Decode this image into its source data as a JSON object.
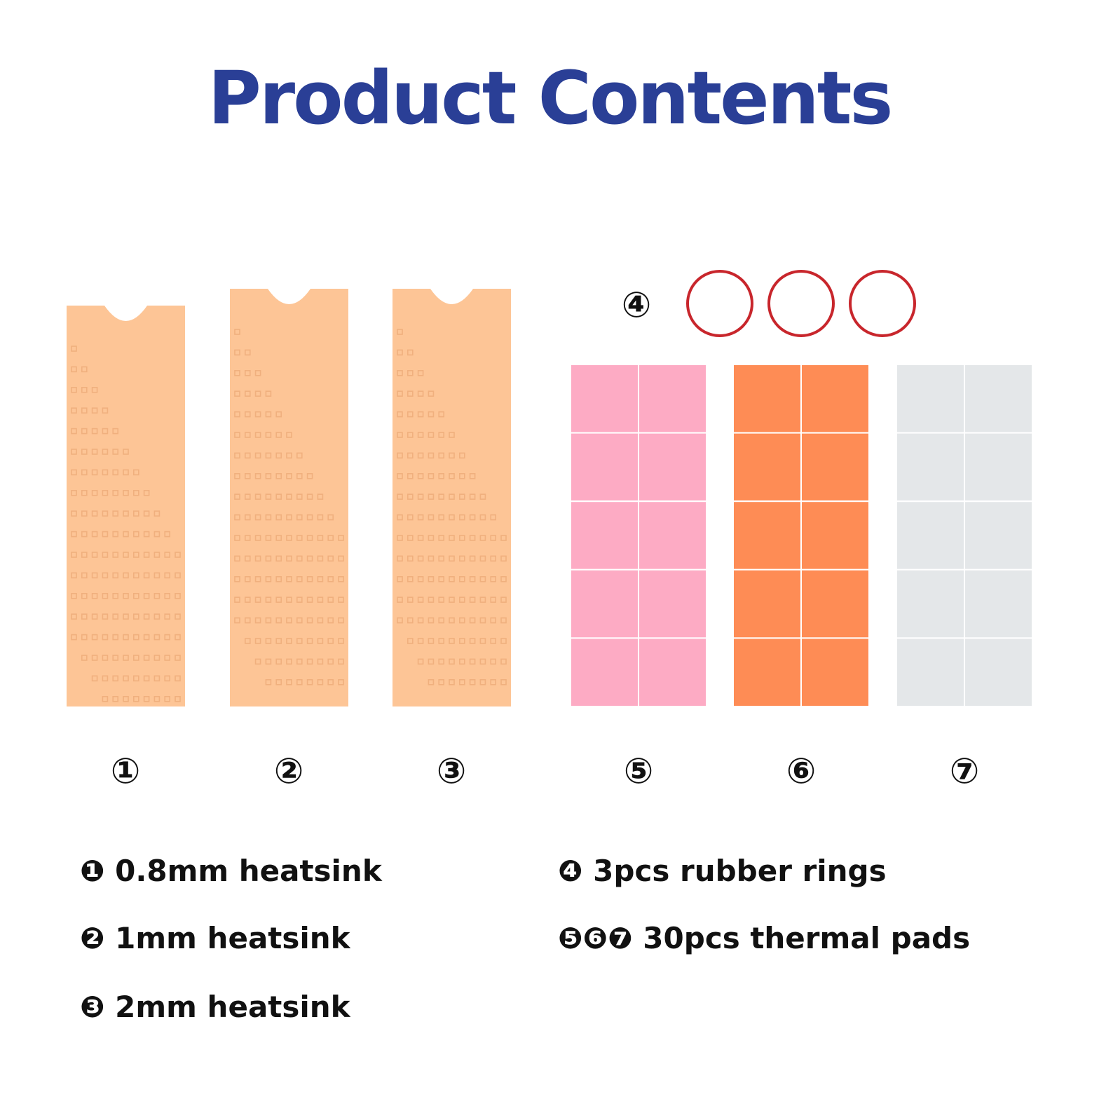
{
  "title": "Product Contents",
  "colors": {
    "title": "#2a3f96",
    "heatsink": "#fdc596",
    "heatsink_dot": "#f0b07e",
    "ring": "#c8262c",
    "pad_pink": "#fdabc4",
    "pad_orange": "#fe8c55",
    "pad_white": "#e4e7e9",
    "number": "#111111"
  },
  "heatsinks": [
    {
      "num": "①"
    },
    {
      "num": "②"
    },
    {
      "num": "③"
    }
  ],
  "rings": {
    "num": "④",
    "count": 3
  },
  "pads": [
    {
      "num": "⑤",
      "color": "#fdabc4"
    },
    {
      "num": "⑥",
      "color": "#fe8c55"
    },
    {
      "num": "⑦",
      "color": "#e4e7e9"
    }
  ],
  "captions": {
    "c1": "❶ 0.8mm heatsink",
    "c2": "❷ 1mm heatsink",
    "c3": "❸ 2mm heatsink",
    "c4": "❹ 3pcs rubber rings",
    "c5": "❺❻❼ 30pcs thermal pads"
  }
}
